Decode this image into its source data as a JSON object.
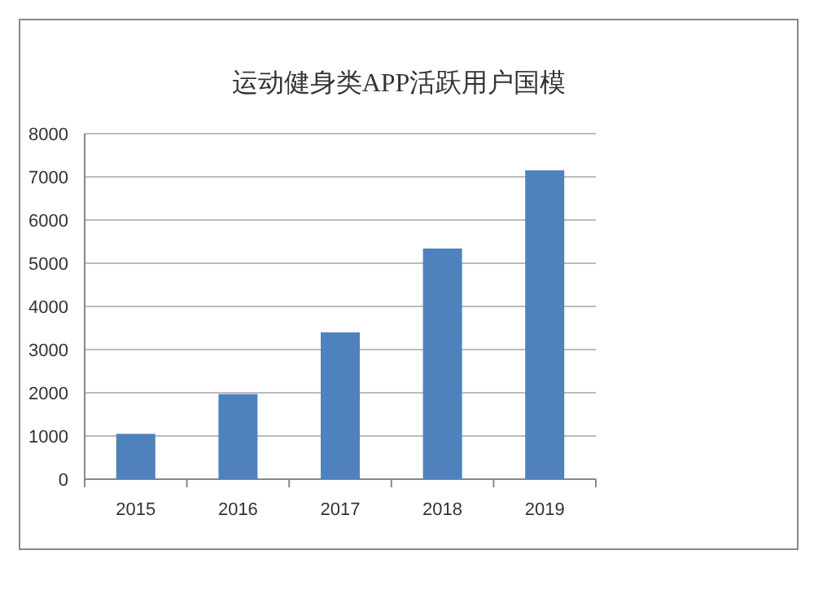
{
  "chart_data": {
    "type": "bar",
    "title": "运动健身类APP活跃用户国模",
    "categories": [
      "2015",
      "2016",
      "2017",
      "2018",
      "2019"
    ],
    "values": [
      1050,
      1970,
      3400,
      5340,
      7150
    ],
    "color": "#4f81bd",
    "ylim": [
      0,
      8000
    ],
    "yticks": [
      0,
      1000,
      2000,
      3000,
      4000,
      5000,
      6000,
      7000,
      8000
    ],
    "grid": "y"
  }
}
